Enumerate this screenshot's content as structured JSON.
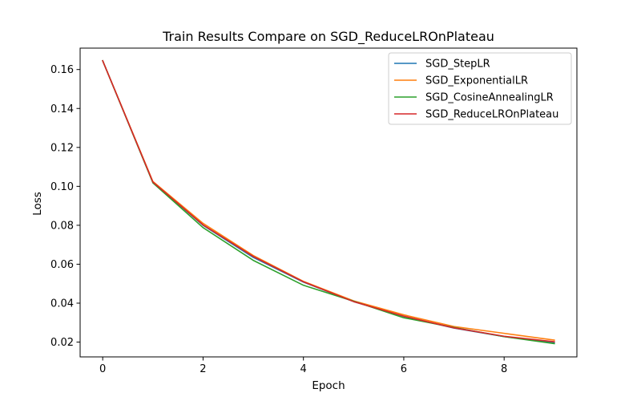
{
  "chart_data": {
    "type": "line",
    "title": "Train Results Compare on SGD_ReduceLROnPlateau",
    "xlabel": "Epoch",
    "ylabel": "Loss",
    "xlim": [
      -0.45,
      9.45
    ],
    "ylim": [
      0.0124,
      0.171
    ],
    "xticks": [
      0,
      2,
      4,
      6,
      8
    ],
    "yticks": [
      0.02,
      0.04,
      0.06,
      0.08,
      0.1,
      0.12,
      0.14,
      0.16
    ],
    "ytick_labels": [
      "0.02",
      "0.04",
      "0.06",
      "0.08",
      "0.10",
      "0.12",
      "0.14",
      "0.16"
    ],
    "legend_position": "top-right",
    "grid": false,
    "x": [
      0,
      1,
      2,
      3,
      4,
      5,
      6,
      7,
      8,
      9
    ],
    "series": [
      {
        "name": "SGD_StepLR",
        "color": "#1f77b4",
        "values": [
          0.1645,
          0.1022,
          0.08,
          0.0635,
          0.0508,
          0.0408,
          0.0332,
          0.0272,
          0.0228,
          0.0198
        ]
      },
      {
        "name": "SGD_ExponentialLR",
        "color": "#ff7f0e",
        "values": [
          0.1645,
          0.1025,
          0.081,
          0.0645,
          0.0512,
          0.0412,
          0.034,
          0.028,
          0.0245,
          0.021
        ]
      },
      {
        "name": "SGD_CosineAnnealingLR",
        "color": "#2ca02c",
        "values": [
          0.1645,
          0.1018,
          0.0788,
          0.062,
          0.0492,
          0.041,
          0.0325,
          0.0275,
          0.0228,
          0.0192
        ]
      },
      {
        "name": "SGD_ReduceLROnPlateau",
        "color": "#d62728",
        "values": [
          0.1645,
          0.1022,
          0.0802,
          0.064,
          0.051,
          0.0408,
          0.0333,
          0.0273,
          0.023,
          0.0202
        ]
      }
    ]
  }
}
